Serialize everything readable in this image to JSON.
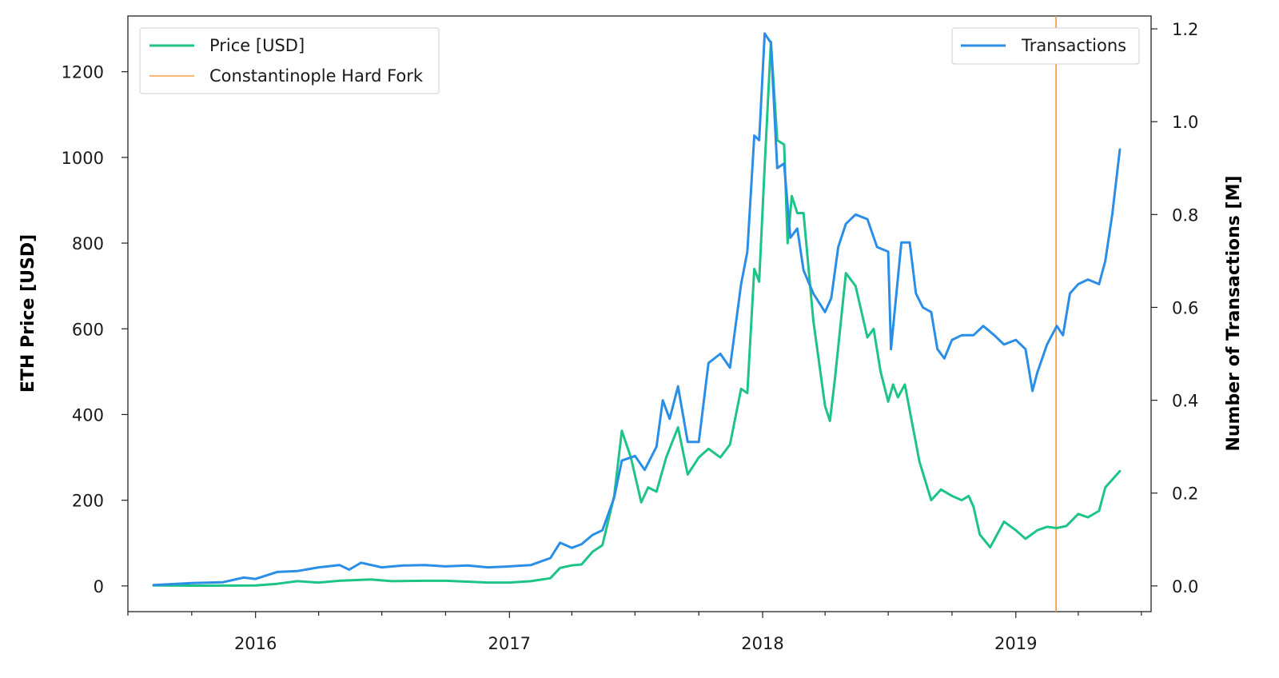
{
  "chart_data": {
    "type": "line",
    "title": "",
    "ylabel_left": "ETH Price [USD]",
    "ylabel_right": "Number of Transactions [M]",
    "xlabel": "",
    "xlim": [
      "2015-07-01",
      "2019-07-15"
    ],
    "ylim_left": [
      -60,
      1330
    ],
    "ylim_right": [
      -0.0554,
      1.2277
    ],
    "x_ticks": [
      "2016",
      "2017",
      "2018",
      "2019"
    ],
    "y_ticks_left": [
      "0",
      "200",
      "400",
      "600",
      "800",
      "1000",
      "1200"
    ],
    "y_ticks_right": [
      "0.0",
      "0.2",
      "0.4",
      "0.6",
      "0.8",
      "1.0",
      "1.2"
    ],
    "grid": false,
    "legend_left": {
      "placement": "top-left",
      "entries": [
        "Price [USD]",
        "Constantinople Hard Fork"
      ]
    },
    "legend_right": {
      "placement": "top-right",
      "entries": [
        "Transactions"
      ]
    },
    "colors": {
      "price": "#1ec486",
      "transactions": "#2b8ee6",
      "fork": "#f5a04a"
    },
    "vline": {
      "label": "Constantinople Hard Fork",
      "x": "2019-02-28"
    },
    "series": [
      {
        "name": "Price [USD]",
        "axis": "left",
        "points": [
          [
            "2015-08-07",
            1
          ],
          [
            "2015-10-01",
            0.6
          ],
          [
            "2015-12-01",
            0.9
          ],
          [
            "2016-01-01",
            1
          ],
          [
            "2016-02-01",
            5
          ],
          [
            "2016-03-01",
            11
          ],
          [
            "2016-04-01",
            8
          ],
          [
            "2016-05-01",
            12
          ],
          [
            "2016-06-15",
            15
          ],
          [
            "2016-07-15",
            11
          ],
          [
            "2016-09-01",
            12
          ],
          [
            "2016-10-01",
            12
          ],
          [
            "2016-11-01",
            10
          ],
          [
            "2016-12-01",
            8
          ],
          [
            "2017-01-01",
            8
          ],
          [
            "2017-02-01",
            11
          ],
          [
            "2017-03-01",
            18
          ],
          [
            "2017-03-15",
            42
          ],
          [
            "2017-04-01",
            48
          ],
          [
            "2017-04-15",
            50
          ],
          [
            "2017-05-01",
            80
          ],
          [
            "2017-05-15",
            95
          ],
          [
            "2017-06-01",
            210
          ],
          [
            "2017-06-12",
            362
          ],
          [
            "2017-06-25",
            300
          ],
          [
            "2017-07-10",
            195
          ],
          [
            "2017-07-20",
            230
          ],
          [
            "2017-08-01",
            220
          ],
          [
            "2017-08-15",
            300
          ],
          [
            "2017-09-01",
            370
          ],
          [
            "2017-09-15",
            260
          ],
          [
            "2017-10-01",
            300
          ],
          [
            "2017-10-15",
            320
          ],
          [
            "2017-11-01",
            300
          ],
          [
            "2017-11-15",
            330
          ],
          [
            "2017-12-01",
            460
          ],
          [
            "2017-12-10",
            450
          ],
          [
            "2017-12-20",
            740
          ],
          [
            "2017-12-27",
            710
          ],
          [
            "2018-01-04",
            980
          ],
          [
            "2018-01-13",
            1270
          ],
          [
            "2018-01-22",
            1040
          ],
          [
            "2018-02-01",
            1030
          ],
          [
            "2018-02-06",
            800
          ],
          [
            "2018-02-12",
            910
          ],
          [
            "2018-02-20",
            870
          ],
          [
            "2018-03-01",
            870
          ],
          [
            "2018-03-15",
            620
          ],
          [
            "2018-04-01",
            420
          ],
          [
            "2018-04-08",
            385
          ],
          [
            "2018-04-15",
            480
          ],
          [
            "2018-05-01",
            730
          ],
          [
            "2018-05-15",
            700
          ],
          [
            "2018-06-01",
            580
          ],
          [
            "2018-06-10",
            600
          ],
          [
            "2018-06-20",
            500
          ],
          [
            "2018-07-01",
            430
          ],
          [
            "2018-07-08",
            470
          ],
          [
            "2018-07-15",
            440
          ],
          [
            "2018-07-25",
            470
          ],
          [
            "2018-08-01",
            410
          ],
          [
            "2018-08-15",
            290
          ],
          [
            "2018-09-01",
            200
          ],
          [
            "2018-09-15",
            225
          ],
          [
            "2018-10-01",
            210
          ],
          [
            "2018-10-15",
            200
          ],
          [
            "2018-10-25",
            210
          ],
          [
            "2018-11-01",
            185
          ],
          [
            "2018-11-10",
            120
          ],
          [
            "2018-11-25",
            90
          ],
          [
            "2018-12-15",
            150
          ],
          [
            "2019-01-01",
            130
          ],
          [
            "2019-01-15",
            110
          ],
          [
            "2019-02-01",
            130
          ],
          [
            "2019-02-15",
            138
          ],
          [
            "2019-03-01",
            135
          ],
          [
            "2019-03-15",
            140
          ],
          [
            "2019-04-01",
            168
          ],
          [
            "2019-04-15",
            160
          ],
          [
            "2019-05-01",
            175
          ],
          [
            "2019-05-10",
            230
          ],
          [
            "2019-05-31",
            268
          ]
        ]
      },
      {
        "name": "Transactions",
        "axis": "right",
        "points": [
          [
            "2015-08-07",
            0.002
          ],
          [
            "2015-10-01",
            0.006
          ],
          [
            "2015-11-15",
            0.008
          ],
          [
            "2015-12-15",
            0.018
          ],
          [
            "2016-01-01",
            0.015
          ],
          [
            "2016-02-01",
            0.03
          ],
          [
            "2016-03-01",
            0.032
          ],
          [
            "2016-04-01",
            0.04
          ],
          [
            "2016-05-01",
            0.045
          ],
          [
            "2016-05-15",
            0.035
          ],
          [
            "2016-06-01",
            0.05
          ],
          [
            "2016-07-01",
            0.04
          ],
          [
            "2016-08-01",
            0.044
          ],
          [
            "2016-09-01",
            0.045
          ],
          [
            "2016-10-01",
            0.042
          ],
          [
            "2016-11-01",
            0.044
          ],
          [
            "2016-12-01",
            0.04
          ],
          [
            "2017-01-01",
            0.042
          ],
          [
            "2017-02-01",
            0.045
          ],
          [
            "2017-03-01",
            0.06
          ],
          [
            "2017-03-15",
            0.093
          ],
          [
            "2017-04-01",
            0.082
          ],
          [
            "2017-04-15",
            0.09
          ],
          [
            "2017-05-01",
            0.11
          ],
          [
            "2017-05-15",
            0.12
          ],
          [
            "2017-06-01",
            0.19
          ],
          [
            "2017-06-12",
            0.27
          ],
          [
            "2017-07-01",
            0.28
          ],
          [
            "2017-07-15",
            0.25
          ],
          [
            "2017-08-01",
            0.3
          ],
          [
            "2017-08-10",
            0.4
          ],
          [
            "2017-08-20",
            0.36
          ],
          [
            "2017-09-01",
            0.43
          ],
          [
            "2017-09-15",
            0.31
          ],
          [
            "2017-10-01",
            0.31
          ],
          [
            "2017-10-15",
            0.48
          ],
          [
            "2017-11-01",
            0.5
          ],
          [
            "2017-11-15",
            0.47
          ],
          [
            "2017-12-01",
            0.65
          ],
          [
            "2017-12-10",
            0.72
          ],
          [
            "2017-12-20",
            0.97
          ],
          [
            "2017-12-27",
            0.96
          ],
          [
            "2018-01-04",
            1.19
          ],
          [
            "2018-01-13",
            1.17
          ],
          [
            "2018-01-22",
            0.9
          ],
          [
            "2018-02-01",
            0.91
          ],
          [
            "2018-02-10",
            0.75
          ],
          [
            "2018-02-20",
            0.77
          ],
          [
            "2018-03-01",
            0.68
          ],
          [
            "2018-03-15",
            0.63
          ],
          [
            "2018-04-01",
            0.59
          ],
          [
            "2018-04-10",
            0.62
          ],
          [
            "2018-04-20",
            0.73
          ],
          [
            "2018-05-01",
            0.78
          ],
          [
            "2018-05-15",
            0.8
          ],
          [
            "2018-06-01",
            0.79
          ],
          [
            "2018-06-15",
            0.73
          ],
          [
            "2018-07-01",
            0.72
          ],
          [
            "2018-07-05",
            0.51
          ],
          [
            "2018-07-20",
            0.74
          ],
          [
            "2018-08-01",
            0.74
          ],
          [
            "2018-08-10",
            0.63
          ],
          [
            "2018-08-20",
            0.6
          ],
          [
            "2018-09-01",
            0.59
          ],
          [
            "2018-09-10",
            0.51
          ],
          [
            "2018-09-20",
            0.49
          ],
          [
            "2018-10-01",
            0.53
          ],
          [
            "2018-10-15",
            0.54
          ],
          [
            "2018-11-01",
            0.54
          ],
          [
            "2018-11-15",
            0.56
          ],
          [
            "2018-12-01",
            0.54
          ],
          [
            "2018-12-15",
            0.52
          ],
          [
            "2019-01-01",
            0.53
          ],
          [
            "2019-01-15",
            0.51
          ],
          [
            "2019-01-25",
            0.42
          ],
          [
            "2019-02-01",
            0.46
          ],
          [
            "2019-02-15",
            0.52
          ],
          [
            "2019-03-01",
            0.56
          ],
          [
            "2019-03-10",
            0.54
          ],
          [
            "2019-03-20",
            0.63
          ],
          [
            "2019-04-01",
            0.65
          ],
          [
            "2019-04-15",
            0.66
          ],
          [
            "2019-05-01",
            0.65
          ],
          [
            "2019-05-10",
            0.7
          ],
          [
            "2019-05-20",
            0.8
          ],
          [
            "2019-05-31",
            0.94
          ]
        ]
      }
    ]
  }
}
